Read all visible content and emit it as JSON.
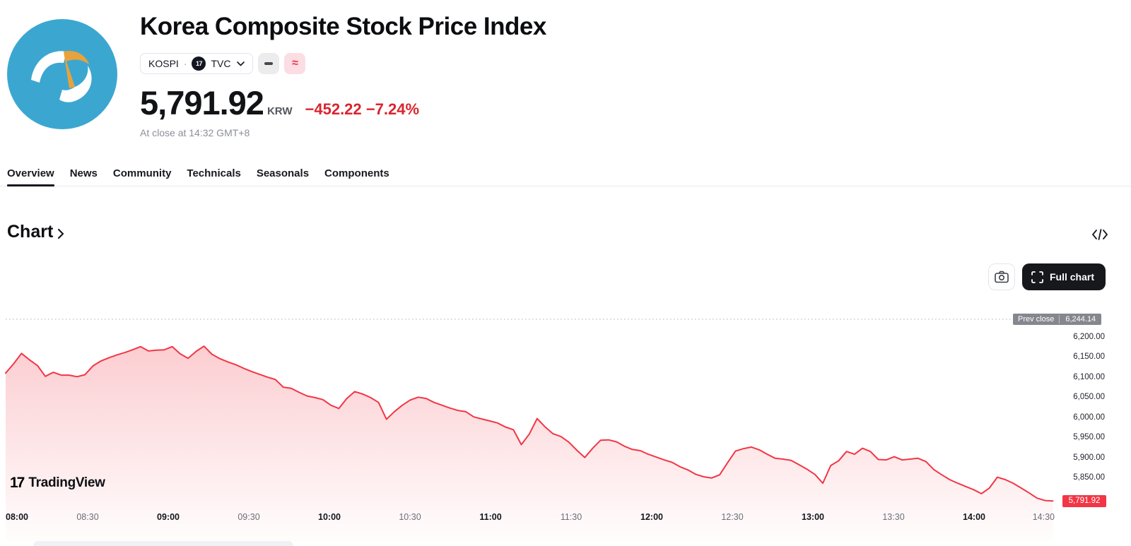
{
  "header": {
    "title": "Korea Composite Stock Price Index",
    "symbol": "KOSPI",
    "separator": "·",
    "exchange": "TVC",
    "exchange_logo_glyph": "17",
    "status_pink_glyph": "≈",
    "price": "5,791.92",
    "currency": "KRW",
    "change": "−452.22",
    "change_percent": "−7.24%",
    "close_note": "At close at 14:32 GMT+8"
  },
  "tabs": [
    {
      "label": "Overview",
      "active": true
    },
    {
      "label": "News",
      "active": false
    },
    {
      "label": "Community",
      "active": false
    },
    {
      "label": "Technicals",
      "active": false
    },
    {
      "label": "Seasonals",
      "active": false
    },
    {
      "label": "Components",
      "active": false
    }
  ],
  "section": {
    "heading": "Chart",
    "full_chart_label": "Full chart"
  },
  "watermark": {
    "logo_glyph": "17",
    "text": "TradingView"
  },
  "colors": {
    "line_red": "#f23645",
    "change_red": "#d9252e",
    "logo_teal": "#3ba7d1",
    "logo_orange": "#e9a23b",
    "prev_close_gray": "#85878f"
  },
  "chart_data": {
    "type": "area",
    "title": "KOSPI intraday price",
    "time_start": "08:00",
    "time_end": "14:32",
    "timezone": "GMT+8",
    "prev_close_label": "Prev close",
    "prev_close_display": "6,244.14",
    "prev_close": 6244.14,
    "last_price_display": "5,791.92",
    "last_price": 5791.92,
    "ylim": [
      5780,
      6260
    ],
    "grid": false,
    "y_ticks": [
      {
        "label": "6,200.00",
        "value": 6200
      },
      {
        "label": "6,150.00",
        "value": 6150
      },
      {
        "label": "6,100.00",
        "value": 6100
      },
      {
        "label": "6,050.00",
        "value": 6050
      },
      {
        "label": "6,000.00",
        "value": 6000
      },
      {
        "label": "5,950.00",
        "value": 5950
      },
      {
        "label": "5,900.00",
        "value": 5900
      },
      {
        "label": "5,850.00",
        "value": 5850
      }
    ],
    "x_ticks": [
      {
        "label": "08:00",
        "bold": true
      },
      {
        "label": "08:30",
        "bold": false
      },
      {
        "label": "09:00",
        "bold": true
      },
      {
        "label": "09:30",
        "bold": false
      },
      {
        "label": "10:00",
        "bold": true
      },
      {
        "label": "10:30",
        "bold": false
      },
      {
        "label": "11:00",
        "bold": true
      },
      {
        "label": "11:30",
        "bold": false
      },
      {
        "label": "12:00",
        "bold": true
      },
      {
        "label": "12:30",
        "bold": false
      },
      {
        "label": "13:00",
        "bold": true
      },
      {
        "label": "13:30",
        "bold": false
      },
      {
        "label": "14:00",
        "bold": true
      },
      {
        "label": "14:30",
        "bold": false
      }
    ],
    "sampling": "evenly spaced from 08:00 to 14:32",
    "prices": [
      6110,
      6133,
      6159,
      6143,
      6129,
      6102,
      6112,
      6105,
      6105,
      6101,
      6106,
      6128,
      6140,
      6148,
      6155,
      6161,
      6168,
      6176,
      6165,
      6167,
      6168,
      6176,
      6158,
      6147,
      6164,
      6177,
      6157,
      6146,
      6138,
      6131,
      6122,
      6114,
      6107,
      6100,
      6094,
      6075,
      6072,
      6062,
      6053,
      6049,
      6044,
      6030,
      6022,
      6047,
      6064,
      6058,
      6049,
      6037,
      5995,
      6014,
      6030,
      6043,
      6050,
      6047,
      6037,
      6030,
      6023,
      6017,
      6014,
      6001,
      5996,
      5991,
      5986,
      5976,
      5969,
      5932,
      5958,
      5997,
      5976,
      5959,
      5952,
      5938,
      5918,
      5900,
      5923,
      5943,
      5944,
      5939,
      5928,
      5920,
      5917,
      5908,
      5901,
      5894,
      5888,
      5877,
      5869,
      5858,
      5852,
      5849,
      5857,
      5887,
      5916,
      5922,
      5926,
      5919,
      5908,
      5898,
      5896,
      5893,
      5882,
      5871,
      5858,
      5836,
      5880,
      5892,
      5915,
      5908,
      5923,
      5915,
      5895,
      5894,
      5902,
      5894,
      5896,
      5898,
      5890,
      5870,
      5857,
      5845,
      5836,
      5828,
      5820,
      5810,
      5824,
      5851,
      5845,
      5836,
      5824,
      5812,
      5799,
      5793,
      5791.92
    ]
  }
}
